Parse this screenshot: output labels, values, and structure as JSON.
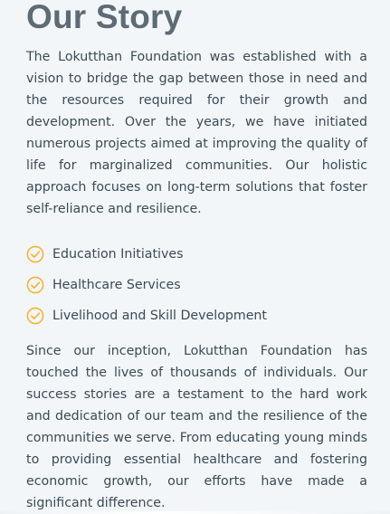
{
  "section": {
    "title": "Our Story",
    "paragraph_1": "The Lokutthan Foundation was established with a vision to bridge the gap between those in need and the resources required for their growth and development. Over the years, we have initiated numerous projects aimed at improving the quality of life for marginalized communities. Our holistic approach focuses on long-term solutions that foster self-reliance and resilience.",
    "features": [
      {
        "label": "Education Initiatives",
        "icon": "check-circle-icon"
      },
      {
        "label": "Healthcare Services",
        "icon": "check-circle-icon"
      },
      {
        "label": "Livelihood and Skill Development",
        "icon": "check-circle-icon"
      }
    ],
    "paragraph_2": "Since our inception, Lokutthan Foundation has touched the lives of thousands of individuals. Our success stories are a testament to the hard work and dedication of our team and the resilience of the communities we serve. From educating young minds to providing essential healthcare and fostering economic growth, our efforts have made a significant difference."
  },
  "colors": {
    "accent": "#f5b335",
    "title": "#5d6b75",
    "text": "#3b4a55",
    "background": "#f3f6f9"
  }
}
